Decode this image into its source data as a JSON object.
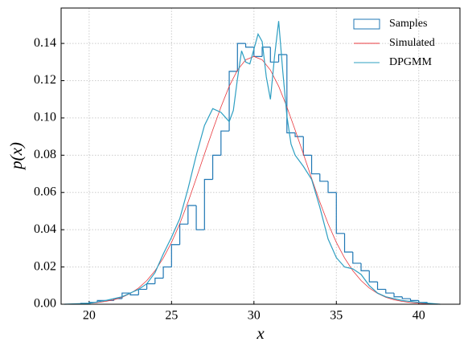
{
  "chart_data": {
    "type": "histogram",
    "xlabel": "x",
    "ylabel": "p(x)",
    "xlim": [
      18.3,
      42.5
    ],
    "ylim": [
      0,
      0.159
    ],
    "xticks": [
      20,
      25,
      30,
      35,
      40
    ],
    "yticks": [
      {
        "value": 0,
        "label": "0.00"
      },
      {
        "value": 0.02,
        "label": "0.02"
      },
      {
        "value": 0.04,
        "label": "0.04"
      },
      {
        "value": 0.06,
        "label": "0.06"
      },
      {
        "value": 0.08,
        "label": "0.08"
      },
      {
        "value": 0.1,
        "label": "0.10"
      },
      {
        "value": 0.12,
        "label": "0.12"
      },
      {
        "value": 0.14,
        "label": "0.14"
      }
    ],
    "grid": true,
    "legend": "upper right",
    "histogram": {
      "name": "Samples",
      "color": "#1f77b4",
      "bins": [
        19.5,
        20,
        20.5,
        21,
        21.5,
        22,
        22.5,
        23,
        23.5,
        24,
        24.5,
        25,
        25.5,
        26,
        26.5,
        27,
        27.5,
        28,
        28.5,
        29,
        29.5,
        30,
        30.5,
        31,
        31.5,
        32,
        32.5,
        33,
        33.5,
        34,
        34.5,
        35,
        35.5,
        36,
        36.5,
        37,
        37.5,
        38,
        38.5,
        39,
        39.5,
        40,
        40.5
      ],
      "values": [
        0.0005,
        0.001,
        0.002,
        0.002,
        0.003,
        0.006,
        0.005,
        0.008,
        0.011,
        0.014,
        0.02,
        0.032,
        0.043,
        0.053,
        0.04,
        0.067,
        0.08,
        0.093,
        0.125,
        0.14,
        0.138,
        0.133,
        0.138,
        0.13,
        0.134,
        0.092,
        0.09,
        0.08,
        0.07,
        0.066,
        0.06,
        0.038,
        0.028,
        0.022,
        0.018,
        0.012,
        0.008,
        0.006,
        0.004,
        0.003,
        0.002,
        0.001
      ]
    },
    "series": [
      {
        "name": "Simulated",
        "color": "#e8383d",
        "x": [
          19,
          19.5,
          20,
          20.5,
          21,
          21.5,
          22,
          22.5,
          23,
          23.5,
          24,
          24.5,
          25,
          25.5,
          26,
          26.5,
          27,
          27.5,
          28,
          28.5,
          29,
          29.5,
          30,
          30.5,
          31,
          31.5,
          32,
          32.5,
          33,
          33.5,
          34,
          34.5,
          35,
          35.5,
          36,
          36.5,
          37,
          37.5,
          38,
          38.5,
          39,
          39.5,
          40,
          40.5,
          41
        ],
        "values": [
          0.0001,
          0.0003,
          0.0005,
          0.0009,
          0.0015,
          0.0024,
          0.0037,
          0.0058,
          0.0087,
          0.0127,
          0.018,
          0.0248,
          0.0332,
          0.0432,
          0.0548,
          0.0676,
          0.0807,
          0.0935,
          0.1059,
          0.117,
          0.1257,
          0.1312,
          0.133,
          0.1312,
          0.1257,
          0.117,
          0.1059,
          0.0935,
          0.0807,
          0.0676,
          0.0548,
          0.0432,
          0.0332,
          0.0248,
          0.018,
          0.0127,
          0.0087,
          0.0058,
          0.0037,
          0.0024,
          0.0015,
          0.0009,
          0.0005,
          0.0003,
          0.0001
        ]
      },
      {
        "name": "DPGMM",
        "color": "#2e9fc2",
        "x": [
          18.5,
          20,
          21,
          22,
          23,
          23.5,
          24,
          24.5,
          25,
          25.5,
          26,
          26.5,
          27,
          27.5,
          28,
          28.5,
          28.75,
          29,
          29.25,
          29.5,
          29.75,
          30,
          30.25,
          30.5,
          30.75,
          31,
          31.25,
          31.5,
          31.75,
          32,
          32.25,
          32.5,
          33,
          33.5,
          34,
          34.5,
          35,
          35.5,
          36,
          36.5,
          37,
          37.5,
          38,
          39,
          40,
          41.3
        ],
        "values": [
          0,
          0.0005,
          0.002,
          0.004,
          0.008,
          0.011,
          0.017,
          0.027,
          0.036,
          0.046,
          0.062,
          0.08,
          0.096,
          0.105,
          0.103,
          0.098,
          0.104,
          0.121,
          0.136,
          0.13,
          0.129,
          0.137,
          0.145,
          0.141,
          0.122,
          0.11,
          0.133,
          0.152,
          0.125,
          0.101,
          0.086,
          0.08,
          0.074,
          0.067,
          0.052,
          0.035,
          0.025,
          0.02,
          0.019,
          0.016,
          0.01,
          0.006,
          0.004,
          0.002,
          0.001,
          0
        ]
      }
    ]
  }
}
